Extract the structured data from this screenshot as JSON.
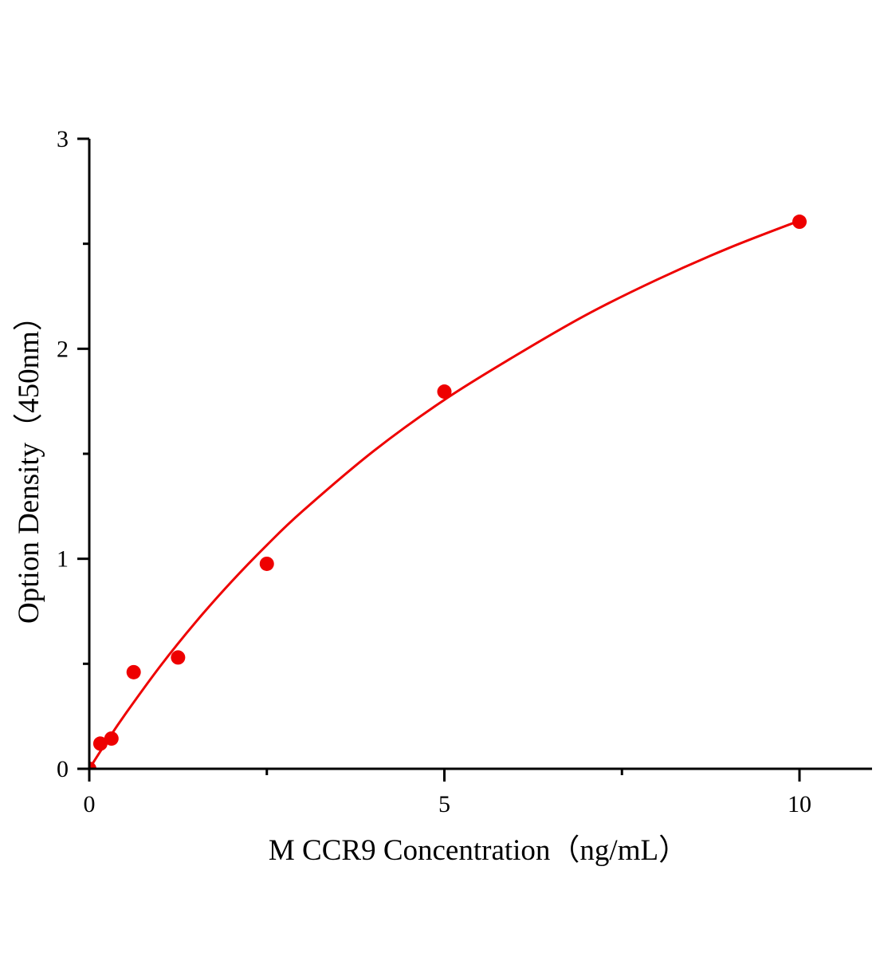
{
  "chart_data": {
    "type": "scatter",
    "title": "",
    "xlabel": "M CCR9 Concentration（ng/mL）",
    "ylabel": "Option Density（450nm）",
    "xlim": [
      0,
      11
    ],
    "ylim": [
      0,
      3
    ],
    "x_ticks": [
      0,
      5,
      10
    ],
    "x_tick_labels": [
      "0",
      "5",
      "10"
    ],
    "x_minor_ticks": [
      2.5,
      7.5
    ],
    "y_ticks": [
      0,
      1,
      2,
      3
    ],
    "y_tick_labels": [
      "0",
      "1",
      "2",
      "3"
    ],
    "y_minor_ticks": [
      0.5,
      1.5,
      2.5
    ],
    "grid": false,
    "legend": "none",
    "series": [
      {
        "x": [
          0,
          0.156,
          0.312,
          0.625,
          1.25,
          2.5,
          5,
          10
        ],
        "y": [
          0,
          0.12,
          0.144,
          0.46,
          0.53,
          0.976,
          1.796,
          2.605
        ],
        "color": "#ee0000",
        "marker": "circle"
      }
    ],
    "fit_curve": {
      "color": "#ee0000",
      "x": [
        0,
        0.25,
        0.5,
        1,
        1.5,
        2,
        2.5,
        3,
        4,
        5,
        6,
        7,
        8,
        9,
        10
      ],
      "y": [
        0,
        0.132,
        0.257,
        0.489,
        0.699,
        0.89,
        1.065,
        1.226,
        1.512,
        1.757,
        1.967,
        2.162,
        2.33,
        2.479,
        2.61
      ]
    }
  }
}
